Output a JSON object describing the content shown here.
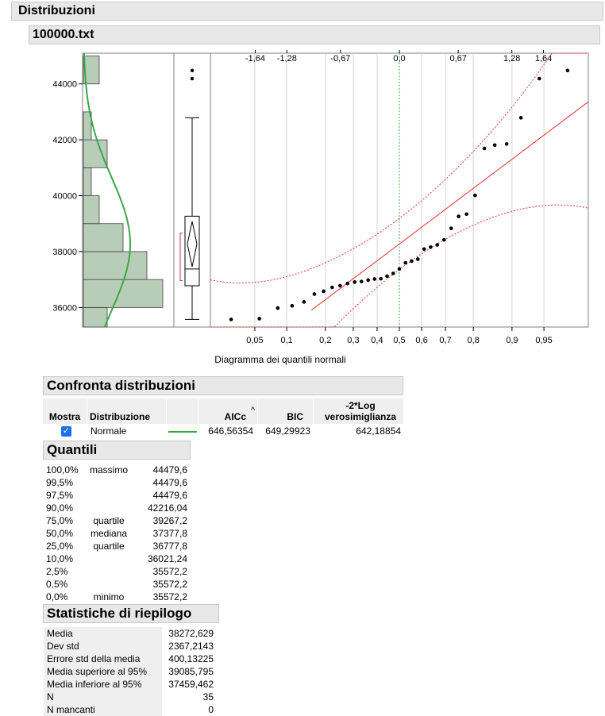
{
  "header": {
    "title": "Distribuzioni",
    "file": "100000.txt"
  },
  "chart_data": [
    {
      "type": "histogram",
      "orientation": "horizontal",
      "y_ticks": [
        "36000",
        "38000",
        "40000",
        "42000",
        "44000"
      ],
      "ylim": [
        35300,
        45100
      ],
      "bins": [
        {
          "from": 35000,
          "to": 36000,
          "count": 3
        },
        {
          "from": 36000,
          "to": 37000,
          "count": 10
        },
        {
          "from": 37000,
          "to": 38000,
          "count": 8
        },
        {
          "from": 38000,
          "to": 39000,
          "count": 5
        },
        {
          "from": 39000,
          "to": 40000,
          "count": 2
        },
        {
          "from": 40000,
          "to": 41000,
          "count": 1
        },
        {
          "from": 41000,
          "to": 42000,
          "count": 3
        },
        {
          "from": 42000,
          "to": 43000,
          "count": 1
        },
        {
          "from": 43000,
          "to": 44000,
          "count": 0
        },
        {
          "from": 44000,
          "to": 45000,
          "count": 2
        }
      ],
      "normal_fit": {
        "mean": 38272.629,
        "sd": 2367.2143,
        "color": "#3aa845"
      }
    },
    {
      "type": "box",
      "min": 35572.2,
      "q1": 36777.8,
      "median": 37377.8,
      "q3": 39267.2,
      "whisker_high": 42788,
      "outliers": [
        44190,
        44479.6
      ],
      "mean": 38272.629,
      "ci_mean": [
        37459.462,
        39085.795
      ],
      "shortest_half": [
        36960,
        38660
      ]
    },
    {
      "type": "scatter",
      "subtype": "normal-quantile",
      "xlabel": "Diagramma dei quantili normali",
      "bottom_ticks": [
        "0,05",
        "0,1",
        "0,2",
        "0,3",
        "0,4",
        "0,5",
        "0,6",
        "0,7",
        "0,8",
        "0,9",
        "0,95"
      ],
      "top_ticks": [
        "-1,64",
        "-1,28",
        "-0,67",
        "0,0",
        "0,67",
        "1,28",
        "1,64"
      ],
      "reference_line_color": "#e03030",
      "points": [
        {
          "p": 0.0278,
          "y": 35572.2
        },
        {
          "p": 0.0556,
          "y": 35600
        },
        {
          "p": 0.0833,
          "y": 35980
        },
        {
          "p": 0.1111,
          "y": 36060
        },
        {
          "p": 0.1389,
          "y": 36200
        },
        {
          "p": 0.1667,
          "y": 36480
        },
        {
          "p": 0.1944,
          "y": 36580
        },
        {
          "p": 0.2222,
          "y": 36720
        },
        {
          "p": 0.25,
          "y": 36780
        },
        {
          "p": 0.2778,
          "y": 36860
        },
        {
          "p": 0.3056,
          "y": 36910
        },
        {
          "p": 0.3333,
          "y": 36930
        },
        {
          "p": 0.3611,
          "y": 36980
        },
        {
          "p": 0.3889,
          "y": 37020
        },
        {
          "p": 0.4167,
          "y": 37030
        },
        {
          "p": 0.4444,
          "y": 37120
        },
        {
          "p": 0.4722,
          "y": 37220
        },
        {
          "p": 0.5,
          "y": 37377.8
        },
        {
          "p": 0.5278,
          "y": 37600
        },
        {
          "p": 0.5556,
          "y": 37660
        },
        {
          "p": 0.5833,
          "y": 37730
        },
        {
          "p": 0.6111,
          "y": 38090
        },
        {
          "p": 0.6389,
          "y": 38160
        },
        {
          "p": 0.6667,
          "y": 38240
        },
        {
          "p": 0.6944,
          "y": 38420
        },
        {
          "p": 0.7222,
          "y": 38830
        },
        {
          "p": 0.75,
          "y": 39260
        },
        {
          "p": 0.7778,
          "y": 39340
        },
        {
          "p": 0.8056,
          "y": 40010
        },
        {
          "p": 0.8333,
          "y": 41690
        },
        {
          "p": 0.8611,
          "y": 41810
        },
        {
          "p": 0.8889,
          "y": 41850
        },
        {
          "p": 0.9167,
          "y": 42790
        },
        {
          "p": 0.9444,
          "y": 44190
        },
        {
          "p": 0.9722,
          "y": 44479.6
        }
      ]
    }
  ],
  "compare": {
    "title": "Confronta distribuzioni",
    "headers": {
      "show": "Mostra",
      "distribution": "Distribuzione",
      "aicc": "AICc",
      "sort_mark": "^",
      "bic": "BIC",
      "loglik": "-2*Log verosimiglianza"
    },
    "row": {
      "checked": true,
      "name": "Normale",
      "line_color": "#3aa845",
      "aicc": "646,56354",
      "bic": "649,29923",
      "loglik": "642,18854"
    }
  },
  "quantiles": {
    "title": "Quantili",
    "rows": [
      {
        "pct": "100,0%",
        "label": "massimo",
        "value": "44479,6"
      },
      {
        "pct": "99,5%",
        "label": "",
        "value": "44479,6"
      },
      {
        "pct": "97,5%",
        "label": "",
        "value": "44479,6"
      },
      {
        "pct": "90,0%",
        "label": "",
        "value": "42216,04"
      },
      {
        "pct": "75,0%",
        "label": "quartile",
        "value": "39267,2"
      },
      {
        "pct": "50,0%",
        "label": "mediana",
        "value": "37377,8"
      },
      {
        "pct": "25,0%",
        "label": "quartile",
        "value": "36777,8"
      },
      {
        "pct": "10,0%",
        "label": "",
        "value": "36021,24"
      },
      {
        "pct": "2,5%",
        "label": "",
        "value": "35572,2"
      },
      {
        "pct": "0,5%",
        "label": "",
        "value": "35572,2"
      },
      {
        "pct": "0,0%",
        "label": "minimo",
        "value": "35572,2"
      }
    ]
  },
  "summary": {
    "title": "Statistiche di riepilogo",
    "rows": [
      {
        "label": "Media",
        "value": "38272,629"
      },
      {
        "label": "Dev std",
        "value": "2367,2143"
      },
      {
        "label": "Errore std della media",
        "value": "400,13225"
      },
      {
        "label": "Media superiore al 95%",
        "value": "39085,795"
      },
      {
        "label": "Media inferiore al 95%",
        "value": "37459,462"
      },
      {
        "label": "N",
        "value": "35"
      },
      {
        "label": "N mancanti",
        "value": "0"
      }
    ]
  }
}
